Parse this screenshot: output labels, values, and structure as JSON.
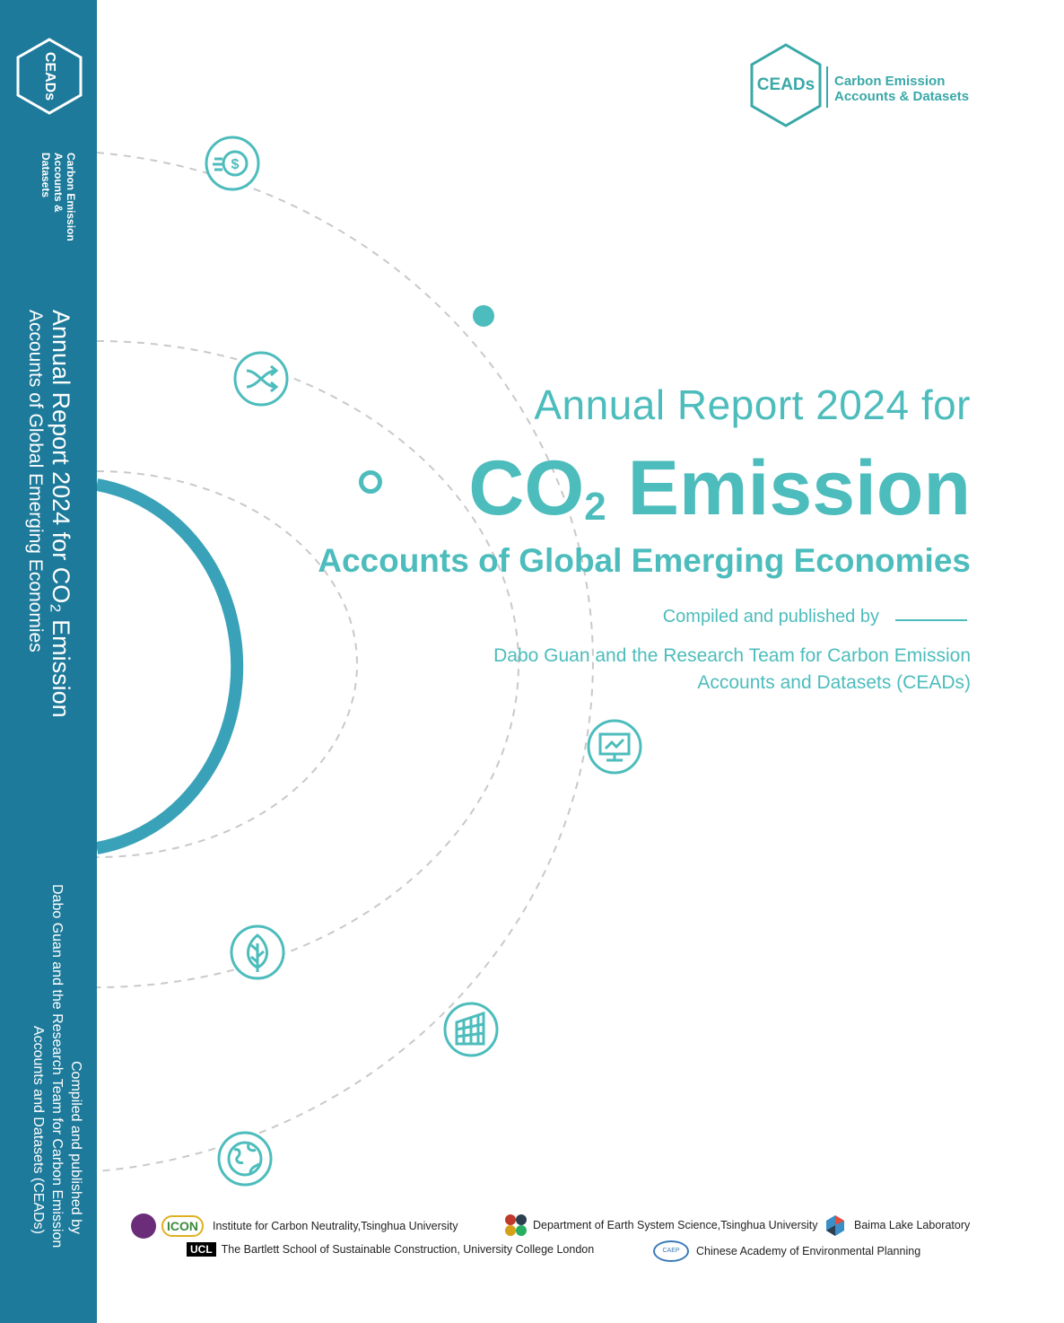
{
  "spine": {
    "logo_label": "CEADs",
    "logo_text_line1": "Carbon Emission",
    "logo_text_line2": "Accounts & Datasets",
    "title_line1": "Annual Report 2024 for CO₂ Emission",
    "title_line2": "Accounts of Global Emerging Economies",
    "credit_line1": "Compiled and published by",
    "credit_line2": "Dabo Guan and the Research Team for Carbon Emission",
    "credit_line3": "Accounts and Datasets (CEADs)"
  },
  "brand": {
    "logo_label": "CEADs",
    "line1": "Carbon Emission",
    "line2": "Accounts & Datasets",
    "color": "#3aa8a8"
  },
  "cover": {
    "title_line1": "Annual Report 2024 for",
    "title_main": "CO",
    "title_main_sub": "2",
    "title_main_rest": " Emission",
    "title_line3": "Accounts of Global Emerging Economies",
    "compiled_label": "Compiled and published by",
    "team_line1": "Dabo Guan and the Research Team for Carbon Emission",
    "team_line2": "Accounts and Datasets (CEADs)",
    "accent_color": "#4dbcbc",
    "spine_color": "#1d7a9a"
  },
  "icons": [
    "money-icon",
    "shuffle-icon",
    "monitor-chart-icon",
    "leaf-icon",
    "building-icon",
    "globe-icon"
  ],
  "partners": {
    "icon_logo_text": "ICON",
    "p1": "Institute for Carbon Neutrality,Tsinghua University",
    "p2": "Department of Earth System Science,Tsinghua University",
    "p3": "Baima Lake Laboratory",
    "ucl_logo_text": "UCL",
    "p4": "The Bartlett School of Sustainable Construction, University College London",
    "caep_logo_text": "CAEP",
    "p5": "Chinese Academy of Environmental Planning"
  }
}
